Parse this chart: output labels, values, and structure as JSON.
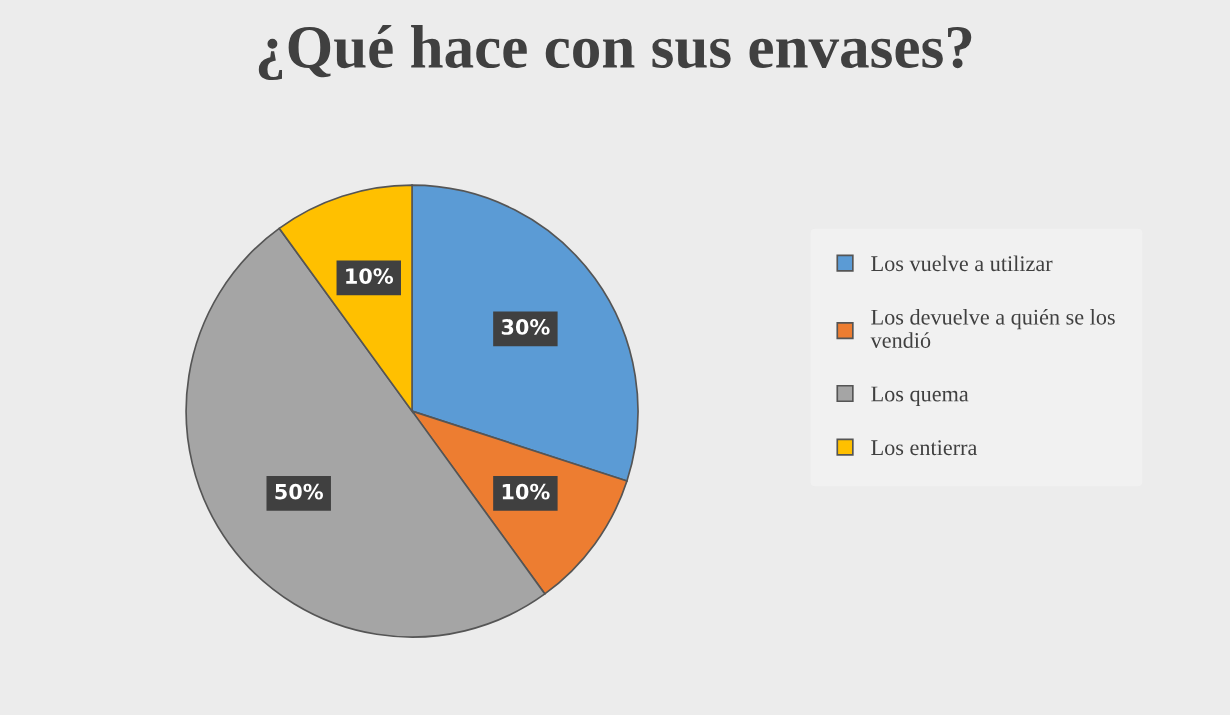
{
  "chart_data": {
    "type": "pie",
    "title": "¿Qué hace con sus envases?",
    "categories": [
      "Los vuelve a utilizar",
      "Los devuelve a quién se los vendió",
      "Los quema",
      "Los entierra"
    ],
    "values": [
      30,
      10,
      50,
      10
    ],
    "colors": [
      "#5b9bd5",
      "#ed7d31",
      "#a5a5a5",
      "#ffc000"
    ],
    "value_labels": [
      "30%",
      "10%",
      "50%",
      "10%"
    ],
    "legend": "right"
  }
}
